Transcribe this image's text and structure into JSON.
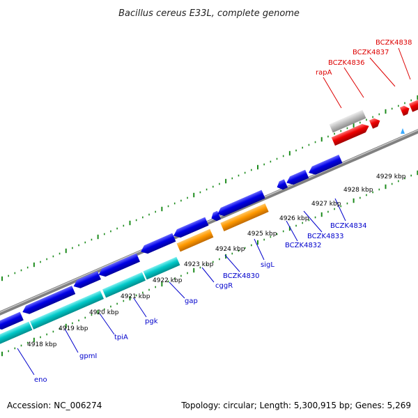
{
  "title": "Bacillus cereus E33L, complete genome",
  "footer": {
    "accession": "Accession: NC_006274",
    "topology": "Topology: circular; Length: 5,300,915 bp; Genes: 5,269"
  },
  "colors": {
    "backbone": "#808080",
    "forward_gene": "#0000e6",
    "reverse_gene": "#0000e6",
    "cds_cyan": "#00c8c8",
    "orange": "#ff9900",
    "red": "#ee0000",
    "gray_gene": "#c0c0c0",
    "tick_green": "#1e8c1e",
    "label_blue": "#0000cc",
    "label_red": "#dd0000"
  },
  "tick_labels": [
    "4918 kbp",
    "4919 kbp",
    "4920 kbp",
    "4921 kbp",
    "4922 kbp",
    "4923 kbp",
    "4924 kbp",
    "4925 kbp",
    "4926 kbp",
    "4927 kbp",
    "4928 kbp",
    "4929 kbp"
  ],
  "gene_labels_blue": [
    "eno",
    "gpmI",
    "tpiA",
    "pgk",
    "gap",
    "cggR",
    "BCZK4830",
    "sigL",
    "BCZK4832",
    "BCZK4833",
    "BCZK4834"
  ],
  "gene_labels_red": [
    "rapA",
    "BCZK4836",
    "BCZK4837",
    "BCZK4838"
  ]
}
